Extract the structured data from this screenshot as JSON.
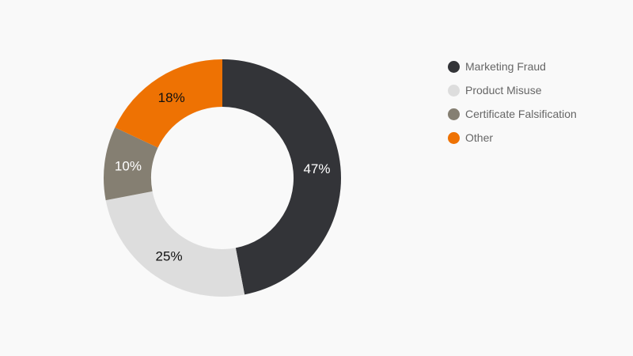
{
  "chart_data": {
    "type": "pie",
    "style": "donut",
    "title": "",
    "legend_position": "right",
    "slices": [
      {
        "name": "Marketing Fraud",
        "value": 47,
        "label": "47%",
        "color": "#333438",
        "label_color": "#ffffff"
      },
      {
        "name": "Product Misuse",
        "value": 25,
        "label": "25%",
        "color": "#dddddd",
        "label_color": "#111111"
      },
      {
        "name": "Certificate Falsification",
        "value": 10,
        "label": "10%",
        "color": "#857f72",
        "label_color": "#ffffff"
      },
      {
        "name": "Other",
        "value": 18,
        "label": "18%",
        "color": "#ee7203",
        "label_color": "#111111"
      }
    ]
  }
}
